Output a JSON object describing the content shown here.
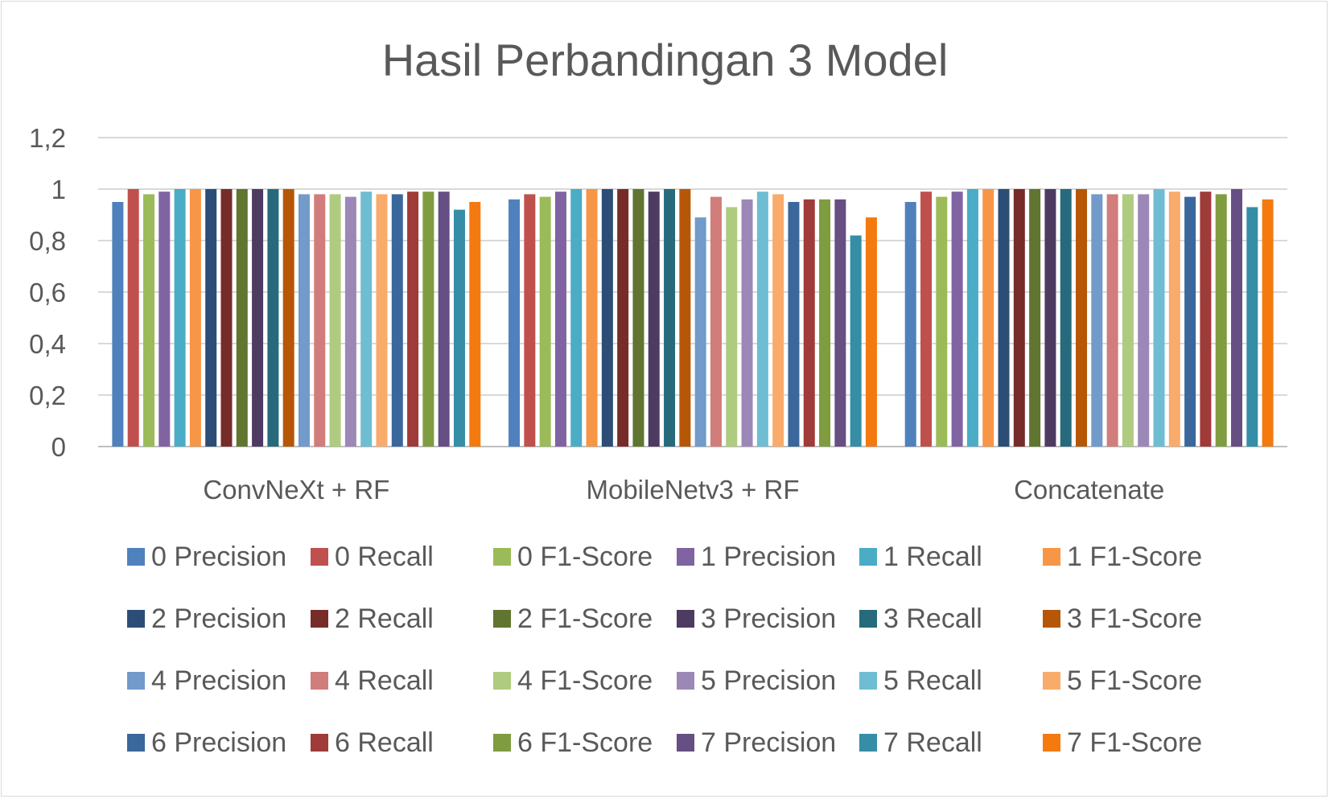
{
  "chart_data": {
    "type": "bar",
    "title": "Hasil Perbandingan 3 Model",
    "xlabel": "",
    "ylabel": "",
    "ylim": [
      0,
      1.2
    ],
    "y_ticks": [
      "0",
      "0,2",
      "0,4",
      "0,6",
      "0,8",
      "1",
      "1,2"
    ],
    "grid": true,
    "legend_position": "bottom",
    "categories": [
      "ConvNeXt + RF",
      "MobileNetv3 + RF",
      "Concatenate"
    ],
    "series": [
      {
        "name": "0 Precision",
        "color": "#4f81bd",
        "values": [
          0.95,
          0.96,
          0.95
        ]
      },
      {
        "name": "0 Recall",
        "color": "#c0504d",
        "values": [
          1.0,
          0.98,
          0.99
        ]
      },
      {
        "name": "0 F1-Score",
        "color": "#9bbb59",
        "values": [
          0.98,
          0.97,
          0.97
        ]
      },
      {
        "name": "1 Precision",
        "color": "#8064a2",
        "values": [
          0.99,
          0.99,
          0.99
        ]
      },
      {
        "name": "1 Recall",
        "color": "#4bacc6",
        "values": [
          1.0,
          1.0,
          1.0
        ]
      },
      {
        "name": "1 F1-Score",
        "color": "#f79646",
        "values": [
          1.0,
          1.0,
          1.0
        ]
      },
      {
        "name": "2 Precision",
        "color": "#2c4d75",
        "values": [
          1.0,
          1.0,
          1.0
        ]
      },
      {
        "name": "2 Recall",
        "color": "#772c2a",
        "values": [
          1.0,
          1.0,
          1.0
        ]
      },
      {
        "name": "2 F1-Score",
        "color": "#5f7530",
        "values": [
          1.0,
          1.0,
          1.0
        ]
      },
      {
        "name": "3 Precision",
        "color": "#4d3b62",
        "values": [
          1.0,
          0.99,
          1.0
        ]
      },
      {
        "name": "3 Recall",
        "color": "#276a7c",
        "values": [
          1.0,
          1.0,
          1.0
        ]
      },
      {
        "name": "3 F1-Score",
        "color": "#b65708",
        "values": [
          1.0,
          1.0,
          1.0
        ]
      },
      {
        "name": "4 Precision",
        "color": "#729aca",
        "values": [
          0.98,
          0.89,
          0.98
        ]
      },
      {
        "name": "4 Recall",
        "color": "#d07d7b",
        "values": [
          0.98,
          0.97,
          0.98
        ]
      },
      {
        "name": "4 F1-Score",
        "color": "#afcb80",
        "values": [
          0.98,
          0.93,
          0.98
        ]
      },
      {
        "name": "5 Precision",
        "color": "#9c88b6",
        "values": [
          0.97,
          0.96,
          0.98
        ]
      },
      {
        "name": "5 Recall",
        "color": "#6fbdd2",
        "values": [
          0.99,
          0.99,
          1.0
        ]
      },
      {
        "name": "5 F1-Score",
        "color": "#f9ab6b",
        "values": [
          0.98,
          0.98,
          0.99
        ]
      },
      {
        "name": "6 Precision",
        "color": "#3a679c",
        "values": [
          0.98,
          0.95,
          0.97
        ]
      },
      {
        "name": "6 Recall",
        "color": "#9f3b38",
        "values": [
          0.99,
          0.96,
          0.99
        ]
      },
      {
        "name": "6 F1-Score",
        "color": "#7f9c40",
        "values": [
          0.99,
          0.96,
          0.98
        ]
      },
      {
        "name": "7 Precision",
        "color": "#664f83",
        "values": [
          0.99,
          0.96,
          1.0
        ]
      },
      {
        "name": "7 Recall",
        "color": "#358ea6",
        "values": [
          0.92,
          0.82,
          0.93
        ]
      },
      {
        "name": "7 F1-Score",
        "color": "#f47a10",
        "values": [
          0.95,
          0.89,
          0.96
        ]
      }
    ]
  }
}
